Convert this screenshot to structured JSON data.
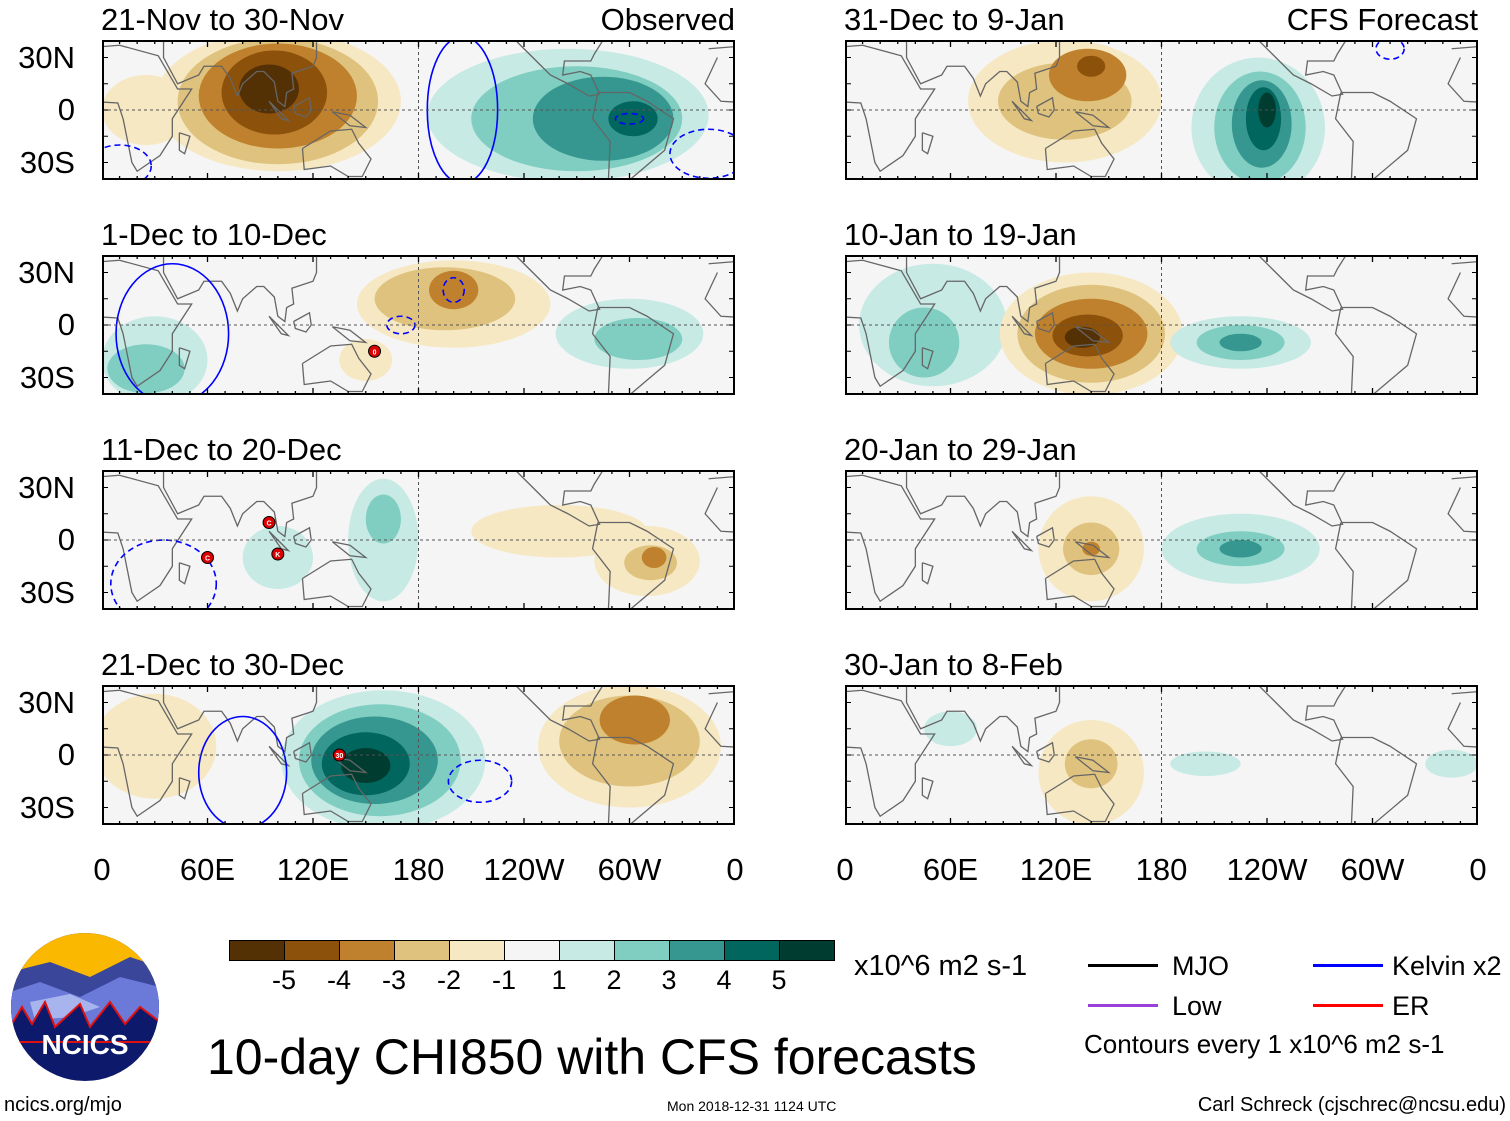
{
  "title": "10-day CHI850 with CFS forecasts",
  "panels": [
    {
      "period": "21-Nov to 30-Nov",
      "tag": "Observed",
      "column": "left"
    },
    {
      "period": "1-Dec to 10-Dec",
      "tag": "",
      "column": "left"
    },
    {
      "period": "11-Dec to 20-Dec",
      "tag": "",
      "column": "left"
    },
    {
      "period": "21-Dec to 30-Dec",
      "tag": "",
      "column": "left"
    },
    {
      "period": "31-Dec to 9-Jan",
      "tag": "CFS Forecast",
      "column": "right"
    },
    {
      "period": "10-Jan to 19-Jan",
      "tag": "",
      "column": "right"
    },
    {
      "period": "20-Jan to 29-Jan",
      "tag": "",
      "column": "right"
    },
    {
      "period": "30-Jan to 8-Feb",
      "tag": "",
      "column": "right"
    }
  ],
  "lat_ticks": [
    "30N",
    "0",
    "30S"
  ],
  "lon_ticks": [
    "0",
    "60E",
    "120E",
    "180",
    "120W",
    "60W",
    "0"
  ],
  "colorbar": {
    "colors": [
      "#543005",
      "#8c510a",
      "#bf812d",
      "#dfc27d",
      "#f6e8c3",
      "#f5f5f5",
      "#c7eae5",
      "#80cdc1",
      "#35978f",
      "#01665e",
      "#003c30"
    ],
    "labels": [
      "-5",
      "-4",
      "-3",
      "-2",
      "-1",
      "1",
      "2",
      "3",
      "4",
      "5"
    ],
    "units": "x10^6 m2 s-1"
  },
  "legend": [
    {
      "label": "MJO",
      "color": "#000000"
    },
    {
      "label": "Kelvin x2",
      "color": "#0000ff"
    },
    {
      "label": "Low",
      "color": "#9a3fd8"
    },
    {
      "label": "ER",
      "color": "#ff0000"
    }
  ],
  "contour_note": "Contours every 1 x10^6 m2 s-1",
  "logo_text": "NCICS",
  "footer": {
    "left": "ncics.org/mjo",
    "center": "Mon 2018-12-31 1124 UTC",
    "right": "Carl Schreck (cjschrec@ncsu.edu)"
  },
  "storm_labels": [
    "0",
    "C",
    "K",
    "C",
    "30"
  ]
}
